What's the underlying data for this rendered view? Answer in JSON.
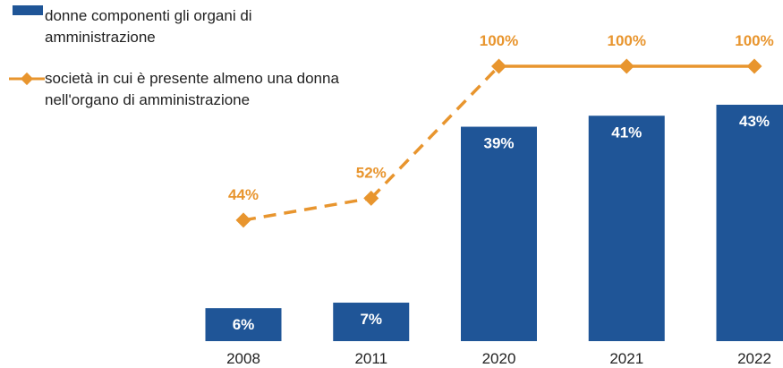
{
  "chart_data": {
    "type": "bar_line",
    "categories": [
      "2008",
      "2011",
      "2020",
      "2021",
      "2022"
    ],
    "series": [
      {
        "name": "donne componenti gli organi di amministrazione",
        "type": "bar",
        "color": "#1f5597",
        "values": [
          6,
          7,
          39,
          41,
          43
        ],
        "value_labels": [
          "6%",
          "7%",
          "39%",
          "41%",
          "43%"
        ]
      },
      {
        "name": "società in cui è presente almeno una donna nell'organo di amministrazione",
        "type": "line",
        "axis": "y2",
        "color": "#e8952e",
        "values": [
          44,
          52,
          100,
          100,
          100
        ],
        "value_labels": [
          "44%",
          "52%",
          "100%",
          "100%",
          "100%"
        ],
        "segment_styles": [
          "dashed",
          "dashed",
          "solid",
          "solid"
        ]
      }
    ],
    "ylim": [
      0,
      50
    ],
    "y2lim": [
      0,
      100
    ]
  }
}
